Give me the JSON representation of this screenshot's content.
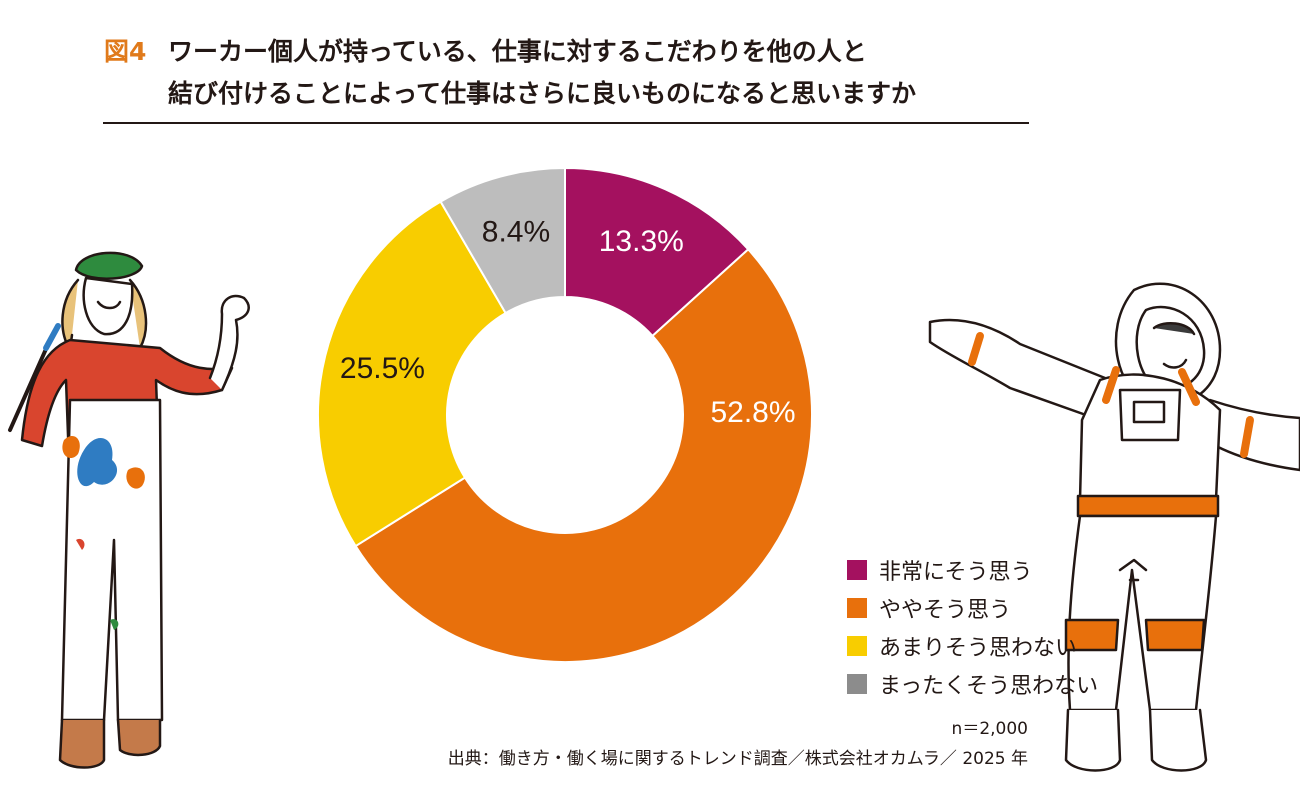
{
  "figure": {
    "label": "図4",
    "title_line_1": "ワーカー個人が持っている、仕事に対するこだわりを他の人と",
    "title_line_2": "結び付けることによって仕事はさらに良いものになると思いますか"
  },
  "chart_data": {
    "type": "pie",
    "donut": true,
    "title": "ワーカー個人が持っている、仕事に対するこだわりを他の人と結び付けることによって仕事はさらに良いものになると思いますか",
    "slices": [
      {
        "label": "非常にそう思う",
        "value": 13.3,
        "value_label": "13.3%",
        "color": "#a4115f",
        "label_color": "#ffffff"
      },
      {
        "label": "ややそう思う",
        "value": 52.8,
        "value_label": "52.8%",
        "color": "#e8700c",
        "label_color": "#ffffff"
      },
      {
        "label": "あまりそう思わない",
        "value": 25.5,
        "value_label": "25.5%",
        "color": "#f8cd00",
        "label_color": "#231815"
      },
      {
        "label": "まったくそう思わない",
        "value": 8.4,
        "value_label": "8.4%",
        "color": "#bdbdbd",
        "label_color": "#231815"
      }
    ],
    "start": "12 o'clock",
    "direction": "clockwise",
    "legend_position": "bottom-right"
  },
  "legend": {
    "items": [
      {
        "label": "非常にそう思う",
        "color": "#a4115f"
      },
      {
        "label": "ややそう思う",
        "color": "#e8700c"
      },
      {
        "label": "あまりそう思わない",
        "color": "#f8cd00"
      },
      {
        "label": "まったくそう思わない",
        "color": "#8c8c8c"
      }
    ]
  },
  "footer": {
    "sample_size": "n＝2,000",
    "source": "出典：働き方・働く場に関するトレンド調査／株式会社オカムラ／ 2025 年"
  },
  "illustrations": {
    "left": "painter-woman-illustration",
    "right": "astronaut-illustration"
  }
}
